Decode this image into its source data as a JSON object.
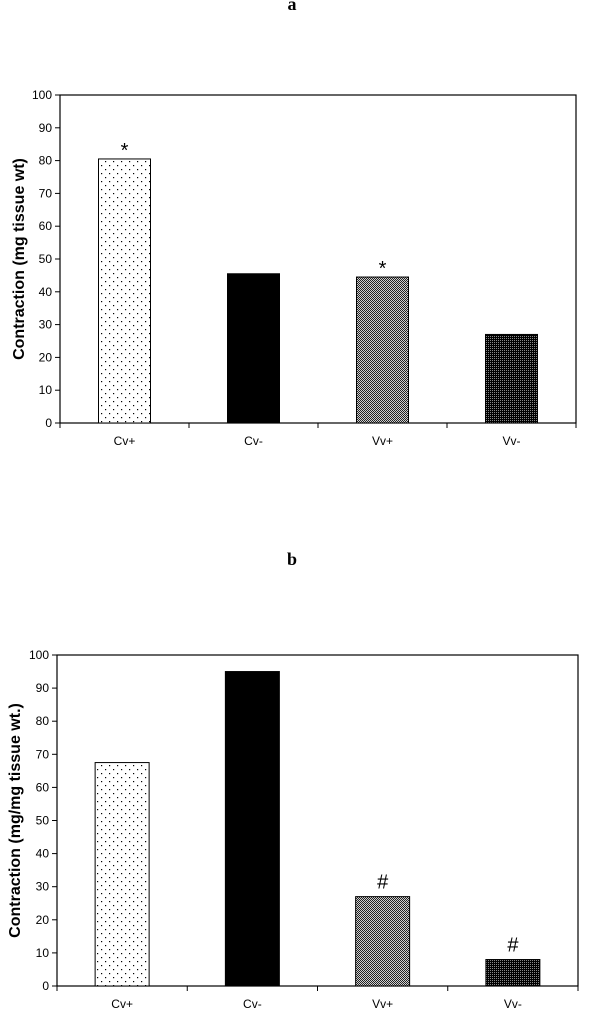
{
  "chart_data": [
    {
      "type": "bar",
      "panel_label": "a",
      "categories": [
        "Cv+",
        "Cv-",
        "Vv+",
        "Vv-"
      ],
      "values": [
        80.5,
        45.5,
        44.5,
        27
      ],
      "annotations": [
        "*",
        "",
        "*",
        ""
      ],
      "bar_fills": [
        "sparse-dots",
        "solid-black",
        "dense-grey",
        "dense-dark"
      ],
      "title": "",
      "xlabel": "",
      "ylabel": "Contraction (mg tissue wt)",
      "ylim": [
        0,
        100
      ],
      "yticks": [
        0,
        10,
        20,
        30,
        40,
        50,
        60,
        70,
        80,
        90,
        100
      ],
      "grid": false
    },
    {
      "type": "bar",
      "panel_label": "b",
      "categories": [
        "Cv+",
        "Cv-",
        "Vv+",
        "Vv-"
      ],
      "values": [
        67.5,
        95,
        27,
        8
      ],
      "annotations": [
        "",
        "",
        "#",
        "#"
      ],
      "bar_fills": [
        "sparse-dots",
        "solid-black",
        "dense-grey",
        "dense-dark"
      ],
      "title": "",
      "xlabel": "",
      "ylabel": "Contraction (mg/mg tissue wt.)",
      "ylim": [
        0,
        100
      ],
      "yticks": [
        0,
        10,
        20,
        30,
        40,
        50,
        60,
        70,
        80,
        90,
        100
      ],
      "grid": false
    }
  ]
}
